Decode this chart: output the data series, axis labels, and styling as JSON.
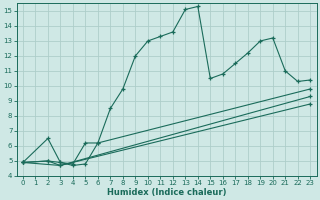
{
  "xlabel": "Humidex (Indice chaleur)",
  "xlim": [
    -0.5,
    23.5
  ],
  "ylim": [
    4,
    15.5
  ],
  "xticks": [
    0,
    1,
    2,
    3,
    4,
    5,
    6,
    7,
    8,
    9,
    10,
    11,
    12,
    13,
    14,
    15,
    16,
    17,
    18,
    19,
    20,
    21,
    22,
    23
  ],
  "yticks": [
    4,
    5,
    6,
    7,
    8,
    9,
    10,
    11,
    12,
    13,
    14,
    15
  ],
  "bg_color": "#cfe8e5",
  "line_color": "#1a6b5a",
  "grid_color": "#aececa",
  "line1_x": [
    0,
    2,
    3,
    4,
    5,
    6,
    7,
    8,
    9,
    10,
    11,
    12,
    13,
    14,
    15,
    16,
    17,
    18,
    19,
    20,
    21,
    22,
    23
  ],
  "line1_y": [
    4.9,
    6.5,
    4.9,
    4.7,
    4.8,
    6.2,
    8.5,
    9.8,
    12.0,
    13.0,
    13.3,
    13.6,
    15.1,
    15.3,
    10.5,
    10.8,
    11.5,
    12.2,
    13.0,
    13.2,
    11.0,
    10.3,
    10.4
  ],
  "line2_x": [
    0,
    2,
    3,
    4,
    5,
    6,
    23
  ],
  "line2_y": [
    4.9,
    5.0,
    4.9,
    4.8,
    6.2,
    6.2,
    9.8
  ],
  "line3_x": [
    0,
    2,
    3,
    23
  ],
  "line3_y": [
    4.9,
    5.0,
    4.7,
    8.8
  ],
  "line4_x": [
    0,
    3,
    23
  ],
  "line4_y": [
    4.9,
    4.7,
    9.3
  ]
}
